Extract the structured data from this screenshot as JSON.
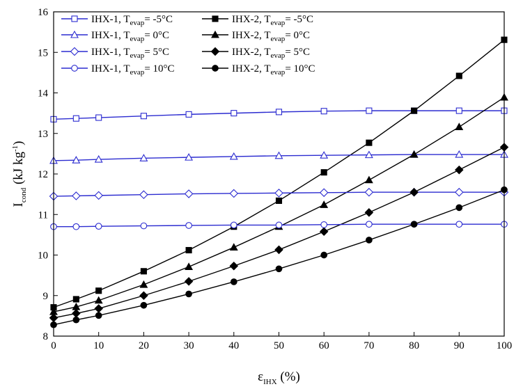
{
  "chart_data": {
    "type": "line",
    "title": "",
    "xlabel": {
      "main": "ε",
      "sub": "IHX",
      "unit": " (%)"
    },
    "ylabel": {
      "main": "I",
      "sub": "cond",
      "unit_pre": " (kJ kg",
      "unit_sup": "-1",
      "unit_post": ")"
    },
    "xlim": [
      0,
      100
    ],
    "ylim": [
      8,
      16
    ],
    "x_ticks": [
      0,
      10,
      20,
      30,
      40,
      50,
      60,
      70,
      80,
      90,
      100
    ],
    "y_ticks": [
      8,
      9,
      10,
      11,
      12,
      13,
      14,
      15,
      16
    ],
    "grid": false,
    "legend_position": "top-left",
    "x": [
      0,
      5,
      10,
      20,
      30,
      40,
      50,
      60,
      70,
      80,
      90,
      100
    ],
    "series": [
      {
        "name_pre": "IHX-1, T",
        "name_sub": "evap",
        "name_post": "= -5°C",
        "color": "#2b2bd0",
        "marker": "square",
        "filled": false,
        "values": [
          13.35,
          13.37,
          13.39,
          13.43,
          13.47,
          13.5,
          13.53,
          13.55,
          13.56,
          13.56,
          13.56,
          13.56
        ]
      },
      {
        "name_pre": "IHX-2, T",
        "name_sub": "evap",
        "name_post": "= -5°C",
        "color": "#000000",
        "marker": "square",
        "filled": true,
        "values": [
          8.71,
          8.91,
          9.12,
          9.6,
          10.12,
          10.7,
          11.34,
          12.04,
          12.77,
          13.56,
          14.42,
          15.31
        ]
      },
      {
        "name_pre": "IHX-1, T",
        "name_sub": "evap",
        "name_post": "= 0°C",
        "color": "#2b2bd0",
        "marker": "triangle",
        "filled": false,
        "values": [
          12.33,
          12.34,
          12.36,
          12.39,
          12.41,
          12.43,
          12.45,
          12.46,
          12.47,
          12.48,
          12.48,
          12.48
        ]
      },
      {
        "name_pre": "IHX-2, T",
        "name_sub": "evap",
        "name_post": "= 0°C",
        "color": "#000000",
        "marker": "triangle",
        "filled": true,
        "values": [
          8.6,
          8.72,
          8.88,
          9.27,
          9.71,
          10.19,
          10.7,
          11.24,
          11.85,
          12.48,
          13.16,
          13.89
        ]
      },
      {
        "name_pre": "IHX-1, T",
        "name_sub": "evap",
        "name_post": "= 5°C",
        "color": "#2b2bd0",
        "marker": "diamond",
        "filled": false,
        "values": [
          11.45,
          11.46,
          11.47,
          11.49,
          11.51,
          11.52,
          11.53,
          11.54,
          11.55,
          11.55,
          11.55,
          11.55
        ]
      },
      {
        "name_pre": "IHX-2, T",
        "name_sub": "evap",
        "name_post": "= 5°C",
        "color": "#000000",
        "marker": "diamond",
        "filled": true,
        "values": [
          8.45,
          8.56,
          8.68,
          9.0,
          9.35,
          9.73,
          10.13,
          10.58,
          11.05,
          11.55,
          12.1,
          12.66
        ]
      },
      {
        "name_pre": "IHX-1, T",
        "name_sub": "evap",
        "name_post": "= 10°C",
        "color": "#2b2bd0",
        "marker": "circle",
        "filled": false,
        "values": [
          10.7,
          10.7,
          10.71,
          10.72,
          10.73,
          10.74,
          10.74,
          10.75,
          10.76,
          10.76,
          10.76,
          10.76
        ]
      },
      {
        "name_pre": "IHX-2, T",
        "name_sub": "evap",
        "name_post": "= 10°C",
        "color": "#000000",
        "marker": "circle",
        "filled": true,
        "values": [
          8.28,
          8.4,
          8.51,
          8.76,
          9.04,
          9.34,
          9.66,
          10.0,
          10.37,
          10.76,
          11.17,
          11.61
        ]
      }
    ]
  }
}
